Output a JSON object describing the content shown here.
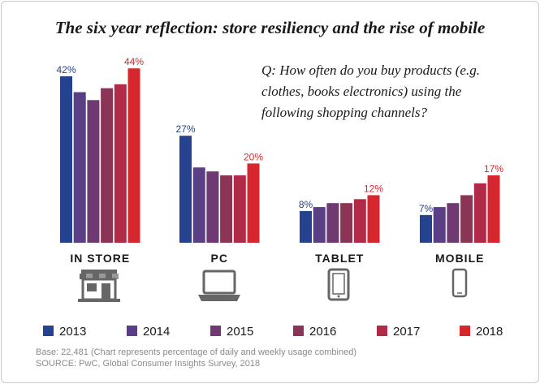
{
  "title": "The six year reflection: store resiliency and the rise of mobile",
  "question": "Q: How often do you buy products (e.g. clothes, books electronics) using the following shopping channels?",
  "footer": {
    "base": "Base: 22,481 (Chart represents percentage of daily and weekly usage combined)",
    "source": "SOURCE: PwC, Global Consumer Insights Survey, 2018"
  },
  "icons": [
    "storefront-icon",
    "laptop-icon",
    "tablet-icon",
    "smartphone-icon"
  ],
  "chart_data": {
    "type": "bar",
    "categories": [
      "IN STORE",
      "PC",
      "TABLET",
      "MOBILE"
    ],
    "series": [
      {
        "name": "2013",
        "color": "#25428f",
        "values": [
          42,
          27,
          8,
          7
        ]
      },
      {
        "name": "2014",
        "color": "#5a3e86",
        "values": [
          38,
          19,
          9,
          9
        ]
      },
      {
        "name": "2015",
        "color": "#6f3a72",
        "values": [
          36,
          18,
          10,
          10
        ]
      },
      {
        "name": "2016",
        "color": "#8c3456",
        "values": [
          39,
          17,
          10,
          12
        ]
      },
      {
        "name": "2017",
        "color": "#b12a48",
        "values": [
          40,
          17,
          11,
          15
        ]
      },
      {
        "name": "2018",
        "color": "#d6262e",
        "values": [
          44,
          20,
          12,
          17
        ]
      }
    ],
    "data_labels": [
      {
        "category": "IN STORE",
        "first": "42%",
        "last": "44%"
      },
      {
        "category": "PC",
        "first": "27%",
        "last": "20%"
      },
      {
        "category": "TABLET",
        "first": "8%",
        "last": "12%"
      },
      {
        "category": "MOBILE",
        "first": "7%",
        "last": "17%"
      }
    ],
    "label_colors": {
      "first": "#25428f",
      "last": "#d6262e"
    },
    "legend_position": "bottom",
    "grid": false
  }
}
